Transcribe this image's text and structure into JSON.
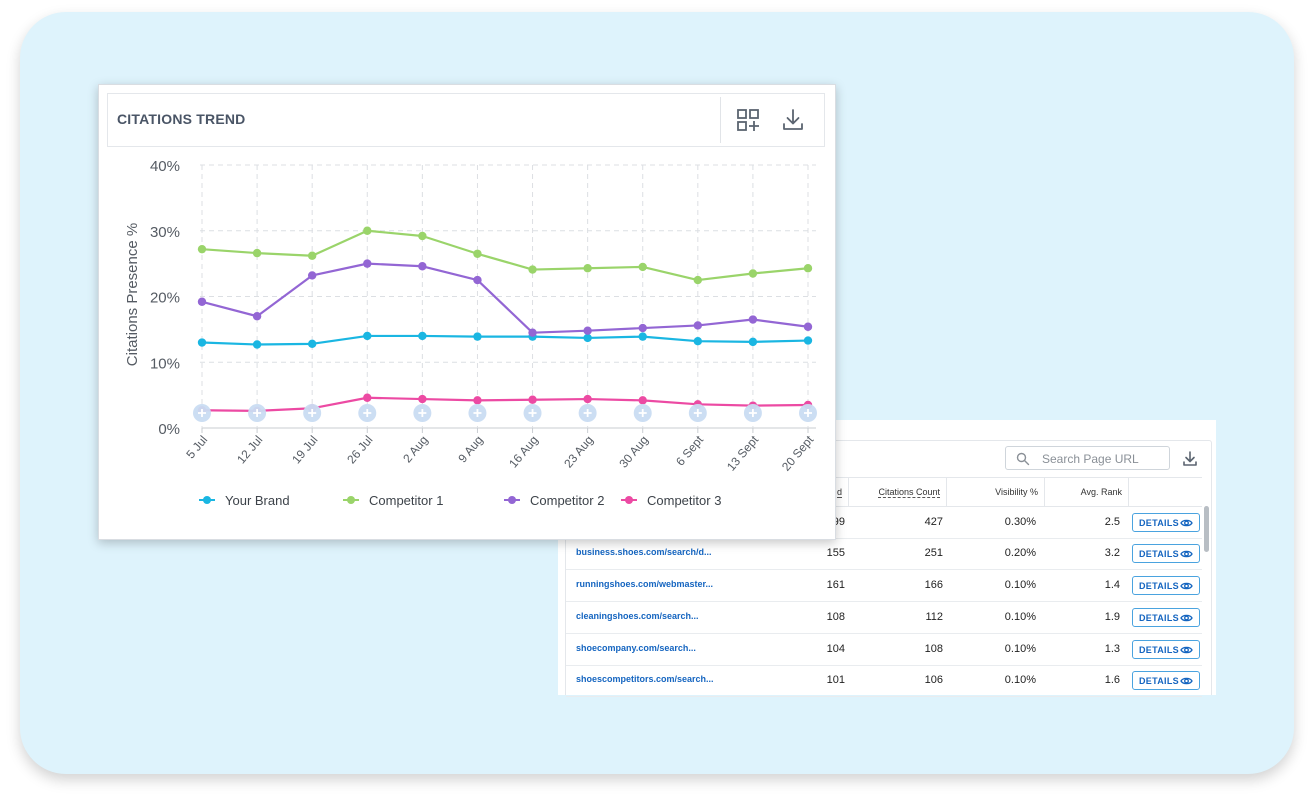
{
  "chart_panel": {
    "title": "CITATIONS TREND",
    "add_widget_icon": "grid-add-icon",
    "download_icon": "download-icon"
  },
  "chart_data": {
    "type": "line",
    "ylabel": "Citations Presence %",
    "xlabel": "",
    "ylim": [
      0,
      40
    ],
    "yticks": [
      "0%",
      "10%",
      "20%",
      "30%",
      "40%"
    ],
    "grid": true,
    "legend_position": "bottom",
    "categories": [
      "5 Jul",
      "12 Jul",
      "19 Jul",
      "26 Jul",
      "2 Aug",
      "9 Aug",
      "16 Aug",
      "23 Aug",
      "30 Aug",
      "6 Sept",
      "13 Sept",
      "20 Sept"
    ],
    "series": [
      {
        "name": "Your Brand",
        "color": "#1ab6e2",
        "values": [
          13.0,
          12.7,
          12.8,
          14.0,
          14.0,
          13.9,
          13.9,
          13.7,
          13.9,
          13.2,
          13.1,
          13.3
        ]
      },
      {
        "name": "Competitor 1",
        "color": "#9ad46a",
        "values": [
          27.2,
          26.6,
          26.2,
          30.0,
          29.2,
          26.5,
          24.1,
          24.3,
          24.5,
          22.5,
          23.5,
          24.3
        ]
      },
      {
        "name": "Competitor 2",
        "color": "#9366d4",
        "values": [
          19.2,
          17.0,
          23.2,
          25.0,
          24.6,
          22.5,
          14.5,
          14.8,
          15.2,
          15.6,
          16.5,
          15.4
        ]
      },
      {
        "name": "Competitor 3",
        "color": "#ec4aa3",
        "values": [
          2.7,
          2.6,
          3.0,
          4.6,
          4.4,
          4.2,
          4.3,
          4.4,
          4.2,
          3.6,
          3.4,
          3.5
        ]
      }
    ]
  },
  "table_panel": {
    "search_placeholder": "Search Page URL",
    "search_icon": "search-icon",
    "download_icon": "download-icon",
    "columns": {
      "col1_partial": "d",
      "citations_count": "Citations Count",
      "visibility": "Visibility %",
      "avg_rank": "Avg. Rank"
    },
    "details_label": "DETAILS",
    "rows": [
      {
        "url": "",
        "col1": "99",
        "citations": "427",
        "visibility": "0.30%",
        "rank": "2.5"
      },
      {
        "url": "business.shoes.com/search/d...",
        "col1": "155",
        "citations": "251",
        "visibility": "0.20%",
        "rank": "3.2"
      },
      {
        "url": "runningshoes.com/webmaster...",
        "col1": "161",
        "citations": "166",
        "visibility": "0.10%",
        "rank": "1.4"
      },
      {
        "url": "cleaningshoes.com/search...",
        "col1": "108",
        "citations": "112",
        "visibility": "0.10%",
        "rank": "1.9"
      },
      {
        "url": "shoecompany.com/search...",
        "col1": "104",
        "citations": "108",
        "visibility": "0.10%",
        "rank": "1.3"
      },
      {
        "url": "shoescompetitors.com/search...",
        "col1": "101",
        "citations": "106",
        "visibility": "0.10%",
        "rank": "1.6"
      }
    ]
  }
}
